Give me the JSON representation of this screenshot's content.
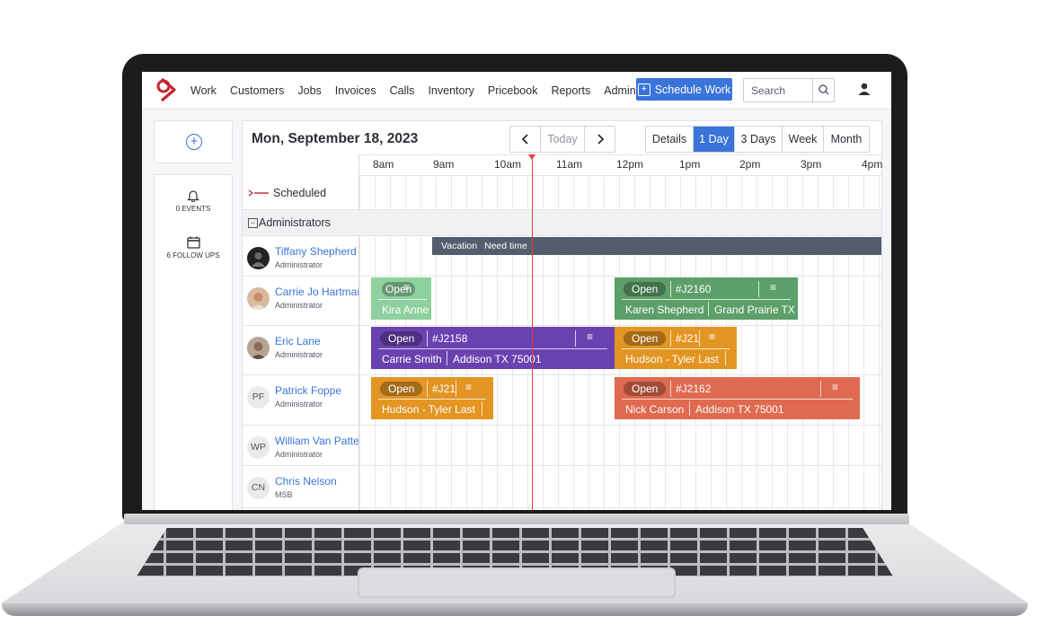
{
  "nav": {
    "items": [
      "Work",
      "Customers",
      "Jobs",
      "Invoices",
      "Calls",
      "Inventory",
      "Pricebook",
      "Reports",
      "Admin"
    ],
    "schedule_button": "Schedule Work",
    "search_placeholder": "Search"
  },
  "sidebar": {
    "events": "0 EVENTS",
    "follow_ups": "6 FOLLOW UPS"
  },
  "calendar": {
    "date": "Mon, September 18, 2023",
    "today": "Today",
    "views": [
      "Details",
      "1 Day",
      "3 Days",
      "Week",
      "Month"
    ],
    "active_view": "1 Day",
    "hours": [
      "8am",
      "9am",
      "10am",
      "11am",
      "12pm",
      "1pm",
      "2pm",
      "3pm",
      "4pm"
    ],
    "scheduled_label": "Scheduled",
    "group_label": "Administrators",
    "people": [
      {
        "name": "Tiffany Shepherd",
        "role": "Administrator",
        "initials": ""
      },
      {
        "name": "Carrie Jo Hartman",
        "role": "Administrator",
        "initials": ""
      },
      {
        "name": "Eric Lane",
        "role": "Administrator",
        "initials": ""
      },
      {
        "name": "Patrick Foppe",
        "role": "Administrator",
        "initials": "PF"
      },
      {
        "name": "William Van Patten",
        "role": "Administrator",
        "initials": "WP"
      },
      {
        "name": "Chris Nelson",
        "role": "MSB",
        "initials": "CN"
      }
    ],
    "vacation": {
      "label": "Vacation",
      "note": "Need time"
    },
    "jobs": {
      "j1": {
        "status": "Open",
        "number": "",
        "customer": "Kira Anne",
        "color": "#8fd19e"
      },
      "j2160": {
        "status": "Open",
        "number": "#J2160",
        "customer": "Karen Shepherd",
        "address": "Grand Prairie TX",
        "color": "#5d9f69"
      },
      "j2158": {
        "status": "Open",
        "number": "#J2158",
        "customer": "Carrie Smith",
        "address": "Addison TX 75001",
        "color": "#6a42b0"
      },
      "j21a": {
        "status": "Open",
        "number": "#J21",
        "customer": "Hudson - Tyler Last",
        "color": "#e39523"
      },
      "j21b": {
        "status": "Open",
        "number": "#J21",
        "customer": "Hudson - Tyler Last",
        "color": "#e39523"
      },
      "j2162": {
        "status": "Open",
        "number": "#J2162",
        "customer": "Nick Carson",
        "address": "Addison TX 75001",
        "color": "#df6a4f"
      }
    }
  }
}
